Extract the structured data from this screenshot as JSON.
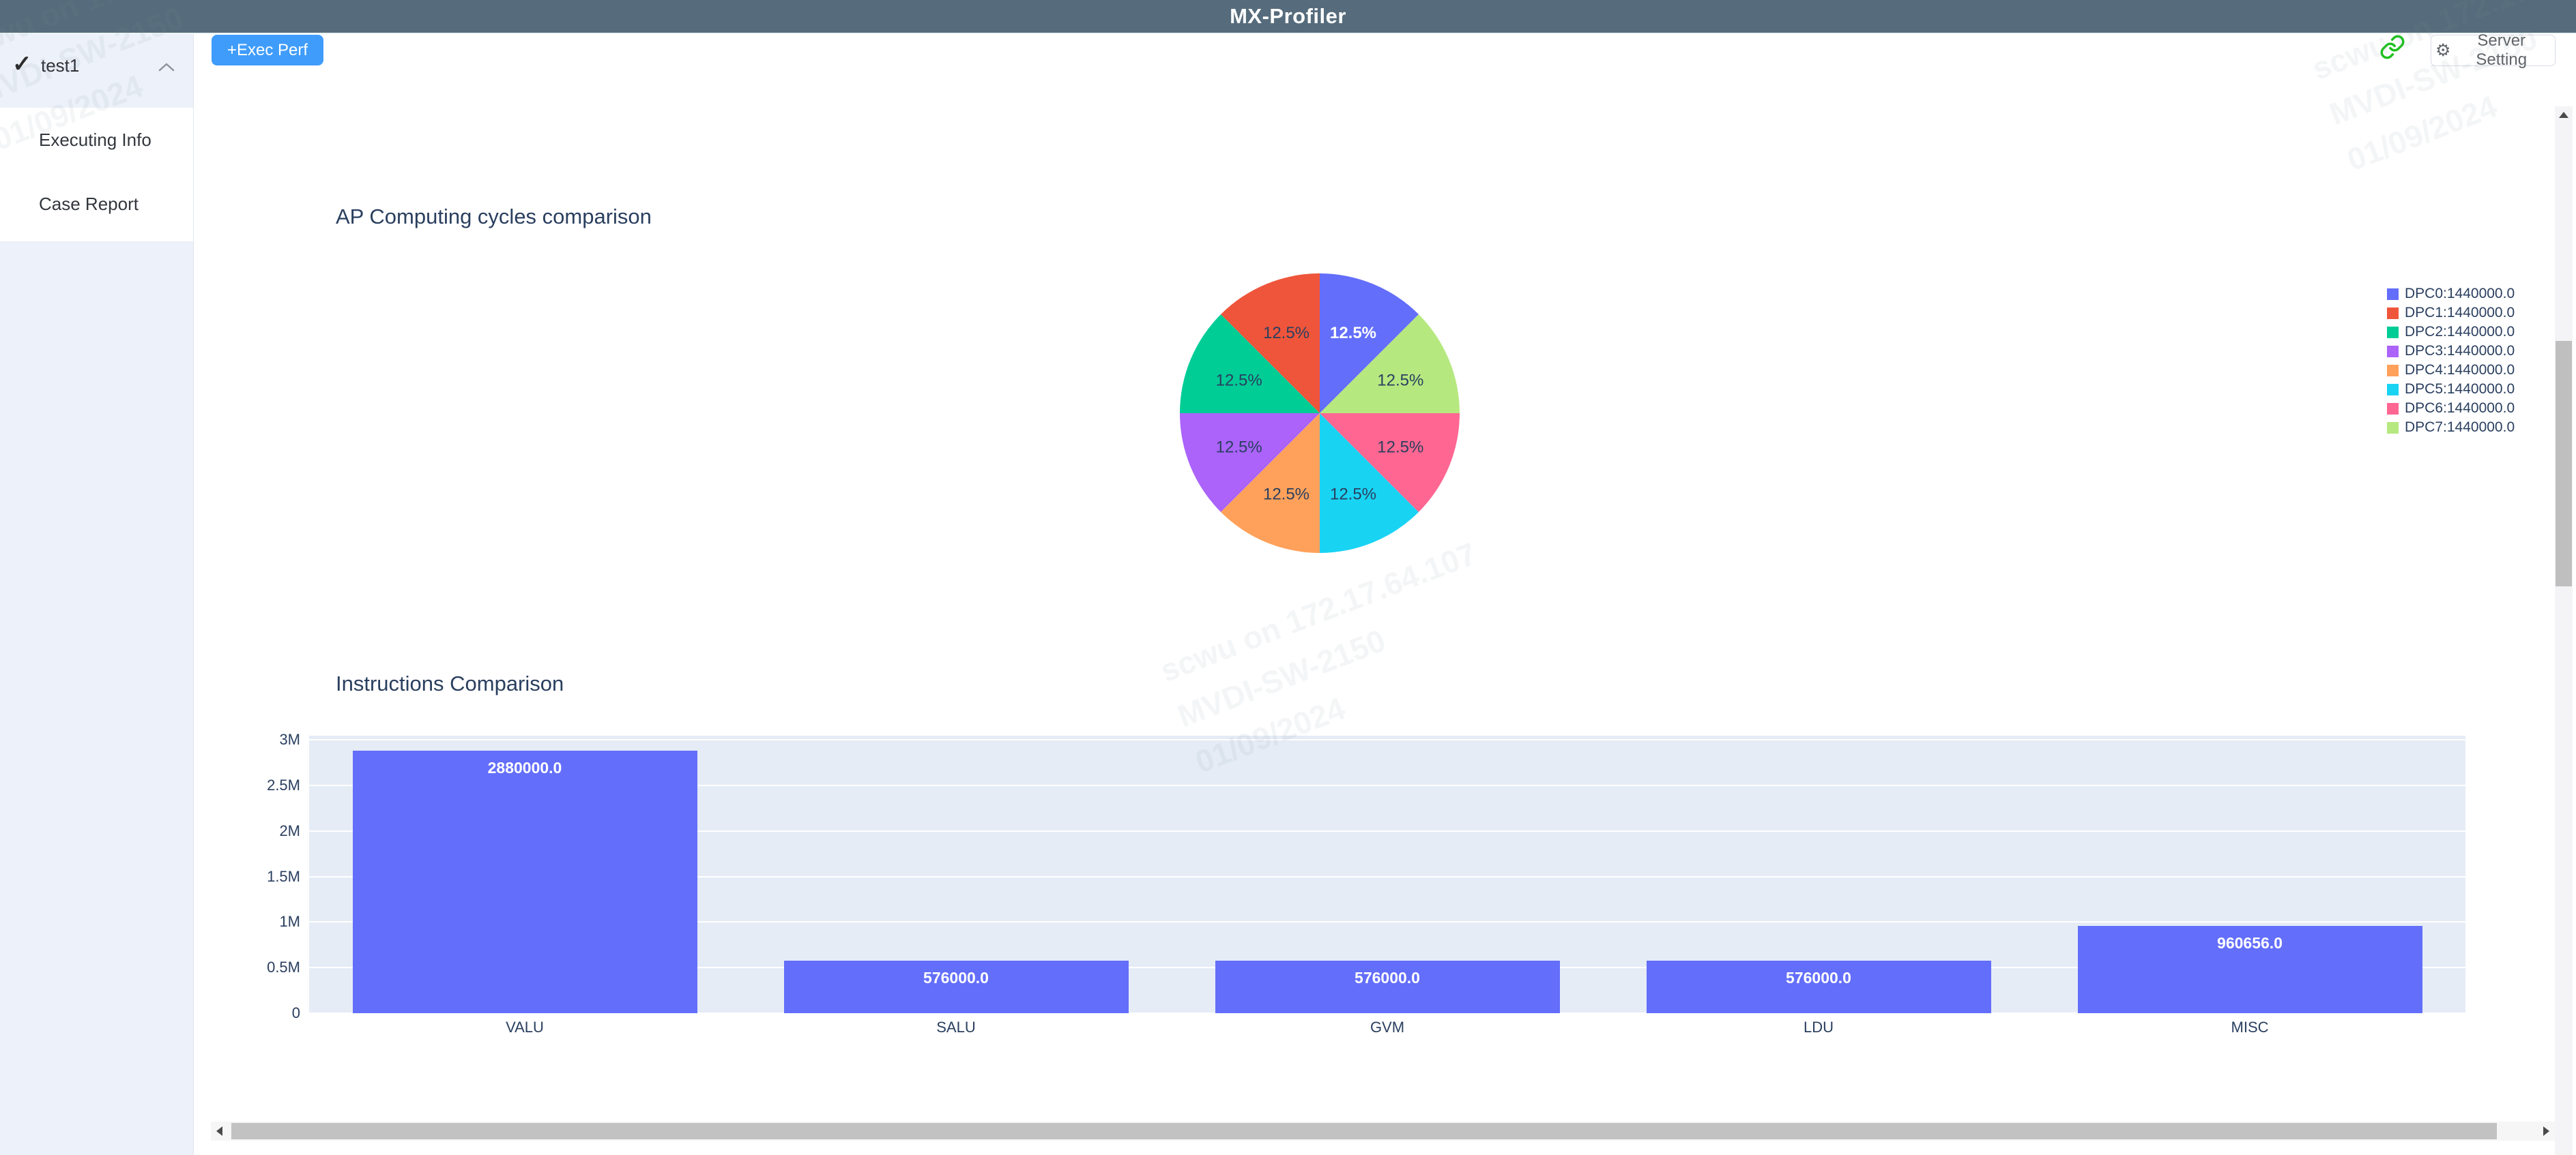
{
  "header": {
    "title": "MX-Profiler"
  },
  "sidebar": {
    "project": {
      "label": "test1"
    },
    "items": [
      {
        "label": "Executing Info"
      },
      {
        "label": "Case Report"
      }
    ]
  },
  "toolbar": {
    "exec_perf_label": "+Exec Perf",
    "server_setting_label": "Server Setting",
    "gear_icon": "⚙"
  },
  "watermark": {
    "lines": [
      "scwu on 172.17.64.107",
      "MVDI-SW-2150",
      "01/09/2024"
    ]
  },
  "colors": {
    "header_bg": "#566c7c",
    "primary_button": "#3f9cfb",
    "link_icon_green": "#1fc11f",
    "section_title_text": "#2a3f5f",
    "bar_fill": "#636EFA",
    "plot_background": "#E5ECF6"
  },
  "chart_data": [
    {
      "type": "pie",
      "title": "AP Computing cycles comparison",
      "labels": [
        "DPC0",
        "DPC1",
        "DPC2",
        "DPC3",
        "DPC4",
        "DPC5",
        "DPC6",
        "DPC7"
      ],
      "values": [
        1440000.0,
        1440000.0,
        1440000.0,
        1440000.0,
        1440000.0,
        1440000.0,
        1440000.0,
        1440000.0
      ],
      "slice_labels": [
        "12.5%",
        "12.5%",
        "12.5%",
        "12.5%",
        "12.5%",
        "12.5%",
        "12.5%",
        "12.5%"
      ],
      "legend_entries": [
        "DPC0:1440000.0",
        "DPC1:1440000.0",
        "DPC2:1440000.0",
        "DPC3:1440000.0",
        "DPC4:1440000.0",
        "DPC5:1440000.0",
        "DPC6:1440000.0",
        "DPC7:1440000.0"
      ],
      "colors": [
        "#636EFA",
        "#EF553B",
        "#00CC96",
        "#AB63FA",
        "#FFA15A",
        "#19D3F3",
        "#FF6692",
        "#B6E880"
      ],
      "legend_position": "right",
      "direction": "counterclockwise",
      "rotation": "start-at-top"
    },
    {
      "type": "bar",
      "title": "Instructions Comparison",
      "categories": [
        "VALU",
        "SALU",
        "GVM",
        "LDU",
        "MISC"
      ],
      "values": [
        2880000.0,
        576000.0,
        576000.0,
        576000.0,
        960656.0
      ],
      "bar_labels": [
        "2880000.0",
        "576000.0",
        "576000.0",
        "576000.0",
        "960656.0"
      ],
      "xlabel": "",
      "ylabel": "",
      "ylim": [
        0,
        3000000
      ],
      "ytick_labels": [
        "0",
        "0.5M",
        "1M",
        "1.5M",
        "2M",
        "2.5M",
        "3M"
      ],
      "grid": true,
      "legend_position": "none"
    }
  ]
}
